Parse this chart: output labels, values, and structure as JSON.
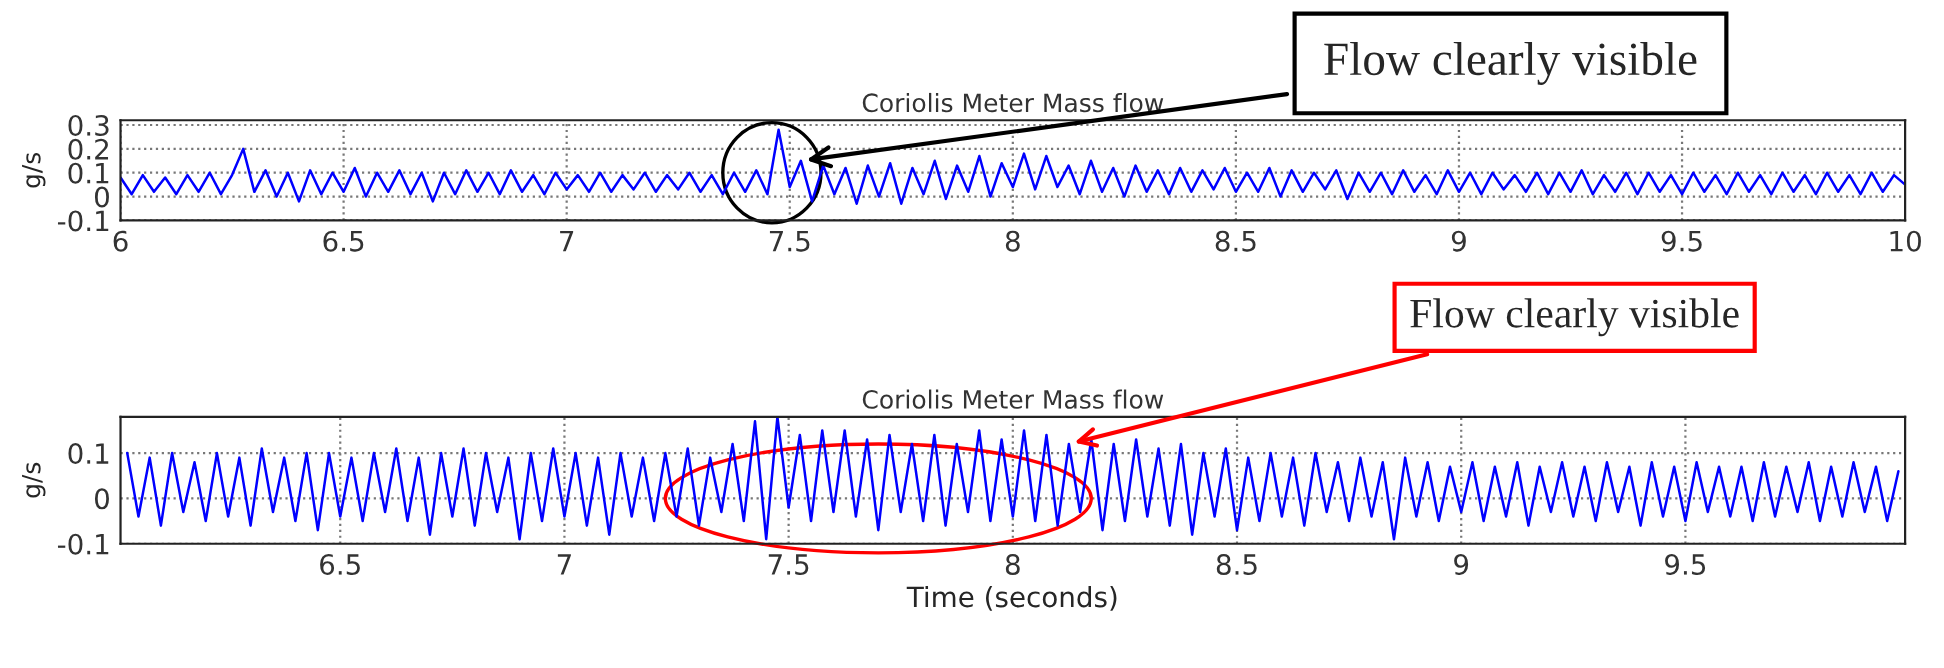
{
  "chart_data": [
    {
      "type": "line",
      "title": "Coriolis Meter Mass flow",
      "ylabel": "g/s",
      "xlim": [
        6,
        10
      ],
      "ylim": [
        -0.1,
        0.32
      ],
      "xticks": [
        6,
        6.5,
        7,
        7.5,
        8,
        8.5,
        9,
        9.5,
        10
      ],
      "yticks": [
        -0.1,
        0,
        0.1,
        0.2,
        0.3
      ],
      "grid": true,
      "tick_labels": true,
      "annotations": [
        {
          "text": "Flow clearly visible",
          "x": 7.525,
          "y": 0.15
        }
      ],
      "series": [
        {
          "color": "#0000ff",
          "x": [
            6,
            6.025,
            6.05,
            6.075,
            6.1,
            6.125,
            6.15,
            6.175,
            6.2,
            6.225,
            6.25,
            6.275,
            6.3,
            6.325,
            6.35,
            6.375,
            6.4,
            6.425,
            6.45,
            6.475,
            6.5,
            6.525,
            6.55,
            6.575,
            6.6,
            6.625,
            6.65,
            6.675,
            6.7,
            6.725,
            6.75,
            6.775,
            6.8,
            6.825,
            6.85,
            6.875,
            6.9,
            6.925,
            6.95,
            6.975,
            7,
            7.025,
            7.05,
            7.075,
            7.1,
            7.125,
            7.15,
            7.175,
            7.2,
            7.225,
            7.25,
            7.275,
            7.3,
            7.325,
            7.35,
            7.375,
            7.4,
            7.425,
            7.45,
            7.475,
            7.5,
            7.525,
            7.55,
            7.575,
            7.6,
            7.625,
            7.65,
            7.675,
            7.7,
            7.725,
            7.75,
            7.775,
            7.8,
            7.825,
            7.85,
            7.875,
            7.9,
            7.925,
            7.95,
            7.975,
            8,
            8.025,
            8.05,
            8.075,
            8.1,
            8.125,
            8.15,
            8.175,
            8.2,
            8.225,
            8.25,
            8.275,
            8.3,
            8.325,
            8.35,
            8.375,
            8.4,
            8.425,
            8.45,
            8.475,
            8.5,
            8.525,
            8.55,
            8.575,
            8.6,
            8.625,
            8.65,
            8.675,
            8.7,
            8.725,
            8.75,
            8.775,
            8.8,
            8.825,
            8.85,
            8.875,
            8.9,
            8.925,
            8.95,
            8.975,
            9,
            9.025,
            9.05,
            9.075,
            9.1,
            9.125,
            9.15,
            9.175,
            9.2,
            9.225,
            9.25,
            9.275,
            9.3,
            9.325,
            9.35,
            9.375,
            9.4,
            9.425,
            9.45,
            9.475,
            9.5,
            9.525,
            9.55,
            9.575,
            9.6,
            9.625,
            9.65,
            9.675,
            9.7,
            9.725,
            9.75,
            9.775,
            9.8,
            9.825,
            9.85,
            9.875,
            9.9,
            9.925,
            9.95,
            9.975,
            10
          ],
          "values": [
            0.08,
            0.01,
            0.09,
            0.02,
            0.08,
            0.01,
            0.09,
            0.02,
            0.1,
            0.01,
            0.09,
            0.2,
            0.02,
            0.11,
            0.0,
            0.1,
            -0.02,
            0.11,
            0.01,
            0.1,
            0.02,
            0.12,
            0.0,
            0.1,
            0.02,
            0.11,
            0.01,
            0.1,
            -0.02,
            0.1,
            0.01,
            0.11,
            0.02,
            0.1,
            0.01,
            0.11,
            0.02,
            0.09,
            0.01,
            0.1,
            0.03,
            0.09,
            0.02,
            0.1,
            0.02,
            0.09,
            0.03,
            0.1,
            0.02,
            0.09,
            0.03,
            0.1,
            0.02,
            0.09,
            0.01,
            0.1,
            0.02,
            0.11,
            0.01,
            0.28,
            0.04,
            0.15,
            -0.02,
            0.13,
            0.01,
            0.12,
            -0.03,
            0.13,
            0.0,
            0.14,
            -0.03,
            0.12,
            0.01,
            0.15,
            -0.01,
            0.13,
            0.02,
            0.17,
            0.0,
            0.14,
            0.04,
            0.18,
            0.03,
            0.17,
            0.04,
            0.13,
            0.01,
            0.15,
            0.02,
            0.12,
            0.0,
            0.13,
            0.02,
            0.11,
            0.01,
            0.12,
            0.02,
            0.11,
            0.03,
            0.12,
            0.02,
            0.1,
            0.02,
            0.12,
            0.0,
            0.11,
            0.02,
            0.1,
            0.03,
            0.11,
            -0.01,
            0.1,
            0.02,
            0.1,
            0.01,
            0.11,
            0.02,
            0.09,
            0.01,
            0.11,
            0.02,
            0.1,
            0.01,
            0.1,
            0.03,
            0.09,
            0.02,
            0.1,
            0.01,
            0.1,
            0.02,
            0.11,
            0.01,
            0.09,
            0.02,
            0.1,
            0.01,
            0.1,
            0.02,
            0.09,
            0.01,
            0.1,
            0.02,
            0.09,
            0.01,
            0.1,
            0.02,
            0.09,
            0.01,
            0.1,
            0.02,
            0.09,
            0.01,
            0.1,
            0.02,
            0.09,
            0.01,
            0.1,
            0.02,
            0.09,
            0.05
          ]
        }
      ]
    },
    {
      "type": "line",
      "title": "Coriolis Meter Mass flow",
      "ylabel": "g/s",
      "xlabel": "Time (seconds)",
      "xlim": [
        6.01,
        9.99
      ],
      "ylim": [
        -0.1,
        0.18
      ],
      "xticks": [
        6.5,
        7,
        7.5,
        8,
        8.5,
        9,
        9.5
      ],
      "yticks": [
        -0.1,
        0,
        0.1
      ],
      "grid": true,
      "annotations": [
        {
          "text": "Flow clearly visible",
          "x": 8.125,
          "y": 0.12
        }
      ],
      "series": [
        {
          "color": "#0000ff",
          "x": [
            6.025,
            6.05,
            6.075,
            6.1,
            6.125,
            6.15,
            6.175,
            6.2,
            6.225,
            6.25,
            6.275,
            6.3,
            6.325,
            6.35,
            6.375,
            6.4,
            6.425,
            6.45,
            6.475,
            6.5,
            6.525,
            6.55,
            6.575,
            6.6,
            6.625,
            6.65,
            6.675,
            6.7,
            6.725,
            6.75,
            6.775,
            6.8,
            6.825,
            6.85,
            6.875,
            6.9,
            6.925,
            6.95,
            6.975,
            7,
            7.025,
            7.05,
            7.075,
            7.1,
            7.125,
            7.15,
            7.175,
            7.2,
            7.225,
            7.25,
            7.275,
            7.3,
            7.325,
            7.35,
            7.375,
            7.4,
            7.425,
            7.45,
            7.475,
            7.5,
            7.525,
            7.55,
            7.575,
            7.6,
            7.625,
            7.65,
            7.675,
            7.7,
            7.725,
            7.75,
            7.775,
            7.8,
            7.825,
            7.85,
            7.875,
            7.9,
            7.925,
            7.95,
            7.975,
            8,
            8.025,
            8.05,
            8.075,
            8.1,
            8.125,
            8.15,
            8.175,
            8.2,
            8.225,
            8.25,
            8.275,
            8.3,
            8.325,
            8.35,
            8.375,
            8.4,
            8.425,
            8.45,
            8.475,
            8.5,
            8.525,
            8.55,
            8.575,
            8.6,
            8.625,
            8.65,
            8.675,
            8.7,
            8.725,
            8.75,
            8.775,
            8.8,
            8.825,
            8.85,
            8.875,
            8.9,
            8.925,
            8.95,
            8.975,
            9,
            9.025,
            9.05,
            9.075,
            9.1,
            9.125,
            9.15,
            9.175,
            9.2,
            9.225,
            9.25,
            9.275,
            9.3,
            9.325,
            9.35,
            9.375,
            9.4,
            9.425,
            9.45,
            9.475,
            9.5,
            9.525,
            9.55,
            9.575,
            9.6,
            9.625,
            9.65,
            9.675,
            9.7,
            9.725,
            9.75,
            9.775,
            9.8,
            9.825,
            9.85,
            9.875,
            9.9,
            9.925,
            9.95,
            9.975
          ],
          "values": [
            0.1,
            -0.04,
            0.09,
            -0.06,
            0.1,
            -0.03,
            0.08,
            -0.05,
            0.1,
            -0.04,
            0.09,
            -0.06,
            0.11,
            -0.03,
            0.09,
            -0.05,
            0.1,
            -0.07,
            0.1,
            -0.04,
            0.09,
            -0.05,
            0.1,
            -0.03,
            0.11,
            -0.05,
            0.09,
            -0.08,
            0.1,
            -0.04,
            0.11,
            -0.06,
            0.1,
            -0.03,
            0.09,
            -0.09,
            0.1,
            -0.05,
            0.11,
            -0.04,
            0.1,
            -0.06,
            0.09,
            -0.08,
            0.1,
            -0.04,
            0.09,
            -0.05,
            0.1,
            -0.04,
            0.11,
            -0.06,
            0.09,
            -0.03,
            0.12,
            -0.05,
            0.17,
            -0.09,
            0.18,
            -0.02,
            0.14,
            -0.05,
            0.15,
            -0.03,
            0.15,
            -0.04,
            0.13,
            -0.07,
            0.14,
            -0.03,
            0.12,
            -0.05,
            0.14,
            -0.06,
            0.12,
            -0.03,
            0.15,
            -0.05,
            0.13,
            -0.04,
            0.15,
            -0.05,
            0.14,
            -0.06,
            0.12,
            -0.03,
            0.13,
            -0.07,
            0.12,
            -0.05,
            0.13,
            -0.04,
            0.11,
            -0.06,
            0.12,
            -0.08,
            0.1,
            -0.04,
            0.11,
            -0.07,
            0.09,
            -0.05,
            0.1,
            -0.04,
            0.09,
            -0.06,
            0.1,
            -0.03,
            0.08,
            -0.05,
            0.09,
            -0.04,
            0.08,
            -0.09,
            0.09,
            -0.04,
            0.08,
            -0.05,
            0.07,
            -0.03,
            0.08,
            -0.05,
            0.07,
            -0.04,
            0.08,
            -0.06,
            0.07,
            -0.03,
            0.08,
            -0.04,
            0.07,
            -0.05,
            0.08,
            -0.03,
            0.07,
            -0.06,
            0.08,
            -0.04,
            0.07,
            -0.05,
            0.08,
            -0.03,
            0.07,
            -0.04,
            0.07,
            -0.05,
            0.08,
            -0.04,
            0.07,
            -0.03,
            0.08,
            -0.05,
            0.07,
            -0.04,
            0.08,
            -0.03,
            0.07,
            -0.05,
            0.06
          ]
        }
      ]
    }
  ]
}
